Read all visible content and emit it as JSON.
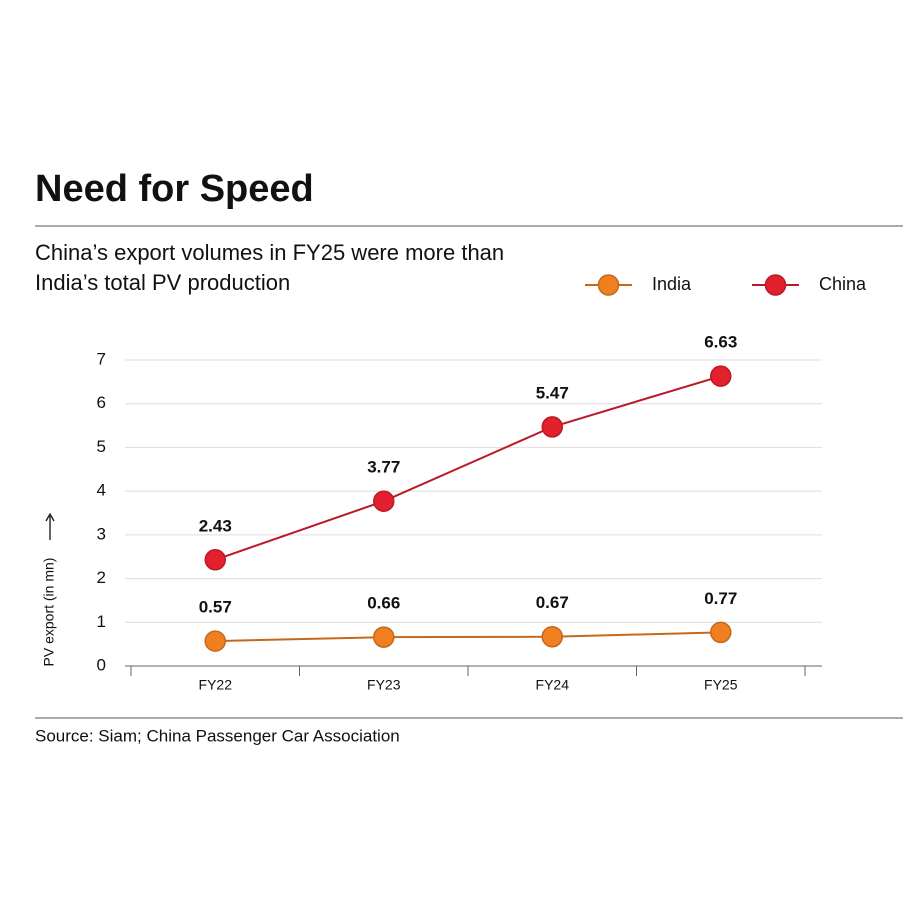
{
  "chart_data": {
    "type": "line",
    "title": "Need for Speed",
    "subtitle": "China’s export volumes in FY25 were more than India’s total PV production",
    "y_label": "PV export (in mn)",
    "source": "Source: Siam; China Passenger Car Association",
    "categories": [
      "FY22",
      "FY23",
      "FY24",
      "FY25"
    ],
    "series": [
      {
        "name": "India",
        "color": "#f07f22",
        "values": [
          0.57,
          0.66,
          0.67,
          0.77
        ]
      },
      {
        "name": "China",
        "color": "#e3202e",
        "values": [
          2.43,
          3.77,
          5.47,
          6.63
        ]
      }
    ],
    "ylim": [
      0,
      7
    ],
    "yticks": [
      0,
      1,
      2,
      3,
      4,
      5,
      6,
      7
    ],
    "grid": true,
    "legend": "top-right"
  }
}
